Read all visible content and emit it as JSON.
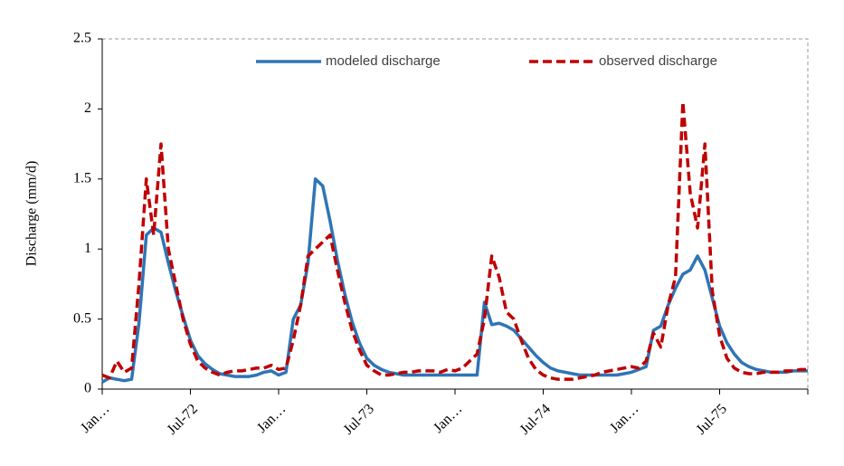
{
  "chart_data": {
    "type": "line",
    "ylabel": "Discharge (mm/d)",
    "x": [
      0,
      0.5,
      1,
      1.5,
      2,
      2.5,
      3,
      3.5,
      4,
      4.5,
      5,
      5.5,
      6,
      6.5,
      7,
      7.5,
      8,
      8.5,
      9,
      9.5,
      10,
      10.5,
      11,
      11.5,
      12,
      12.5,
      13,
      13.5,
      14,
      14.5,
      15,
      15.5,
      16,
      16.5,
      17,
      17.5,
      18,
      18.5,
      19,
      19.5,
      20,
      20.5,
      21,
      21.5,
      22,
      22.5,
      23,
      23.5,
      24,
      24.5,
      25,
      25.5,
      26,
      26.5,
      27,
      27.5,
      28,
      28.5,
      29,
      29.5,
      30,
      30.5,
      31,
      31.5,
      32,
      32.5,
      33,
      33.5,
      34,
      34.5,
      35,
      35.5,
      36,
      36.5,
      37,
      37.5,
      38,
      38.5,
      39,
      39.5,
      40,
      40.5,
      41,
      41.5,
      42,
      42.5,
      43,
      43.5,
      44,
      44.5,
      45,
      45.5,
      46,
      46.5,
      47,
      47.5,
      48
    ],
    "series": [
      {
        "name": "modeled discharge",
        "color": "#2e75b6",
        "dashed": false,
        "values": [
          0.05,
          0.08,
          0.07,
          0.06,
          0.07,
          0.47,
          1.1,
          1.15,
          1.12,
          0.9,
          0.7,
          0.52,
          0.35,
          0.24,
          0.18,
          0.14,
          0.11,
          0.1,
          0.09,
          0.09,
          0.09,
          0.1,
          0.12,
          0.13,
          0.1,
          0.12,
          0.5,
          0.6,
          0.9,
          1.5,
          1.45,
          1.2,
          0.92,
          0.68,
          0.48,
          0.33,
          0.22,
          0.17,
          0.14,
          0.12,
          0.11,
          0.1,
          0.1,
          0.1,
          0.1,
          0.1,
          0.1,
          0.1,
          0.1,
          0.1,
          0.1,
          0.1,
          0.62,
          0.46,
          0.47,
          0.45,
          0.42,
          0.36,
          0.3,
          0.24,
          0.19,
          0.15,
          0.13,
          0.12,
          0.11,
          0.1,
          0.1,
          0.1,
          0.1,
          0.1,
          0.1,
          0.11,
          0.12,
          0.14,
          0.16,
          0.42,
          0.45,
          0.6,
          0.72,
          0.82,
          0.85,
          0.95,
          0.85,
          0.65,
          0.45,
          0.33,
          0.25,
          0.19,
          0.16,
          0.14,
          0.13,
          0.12,
          0.12,
          0.12,
          0.13,
          0.13,
          0.13
        ]
      },
      {
        "name": "observed discharge",
        "color": "#c00000",
        "dashed": true,
        "values": [
          0.1,
          0.08,
          0.2,
          0.12,
          0.15,
          0.75,
          1.5,
          1.1,
          1.75,
          1.0,
          0.75,
          0.5,
          0.32,
          0.2,
          0.15,
          0.12,
          0.1,
          0.12,
          0.13,
          0.13,
          0.14,
          0.15,
          0.15,
          0.17,
          0.14,
          0.15,
          0.35,
          0.6,
          0.95,
          1.0,
          1.05,
          1.1,
          0.85,
          0.62,
          0.42,
          0.28,
          0.17,
          0.13,
          0.1,
          0.1,
          0.11,
          0.12,
          0.12,
          0.13,
          0.13,
          0.13,
          0.12,
          0.14,
          0.13,
          0.15,
          0.2,
          0.25,
          0.5,
          0.95,
          0.8,
          0.55,
          0.5,
          0.35,
          0.22,
          0.14,
          0.1,
          0.08,
          0.07,
          0.07,
          0.07,
          0.08,
          0.09,
          0.1,
          0.12,
          0.13,
          0.14,
          0.15,
          0.16,
          0.15,
          0.2,
          0.4,
          0.3,
          0.6,
          0.8,
          2.05,
          1.4,
          1.15,
          1.75,
          0.7,
          0.38,
          0.22,
          0.15,
          0.12,
          0.11,
          0.11,
          0.12,
          0.12,
          0.12,
          0.13,
          0.13,
          0.14,
          0.14
        ]
      }
    ],
    "xlim": [
      0,
      48
    ],
    "xticks": [
      {
        "value": 0,
        "label": "Jan…"
      },
      {
        "value": 6,
        "label": "Jul-72"
      },
      {
        "value": 12,
        "label": "Jan…"
      },
      {
        "value": 18,
        "label": "Jul-73"
      },
      {
        "value": 24,
        "label": "Jan…"
      },
      {
        "value": 30,
        "label": "Jul-74"
      },
      {
        "value": 36,
        "label": "Jan…"
      },
      {
        "value": 42,
        "label": "Jul-75"
      }
    ],
    "ylim": [
      0,
      2.5
    ],
    "yticks": [
      0,
      0.5,
      1,
      1.5,
      2,
      2.5
    ],
    "grid": false,
    "legend": "top"
  }
}
